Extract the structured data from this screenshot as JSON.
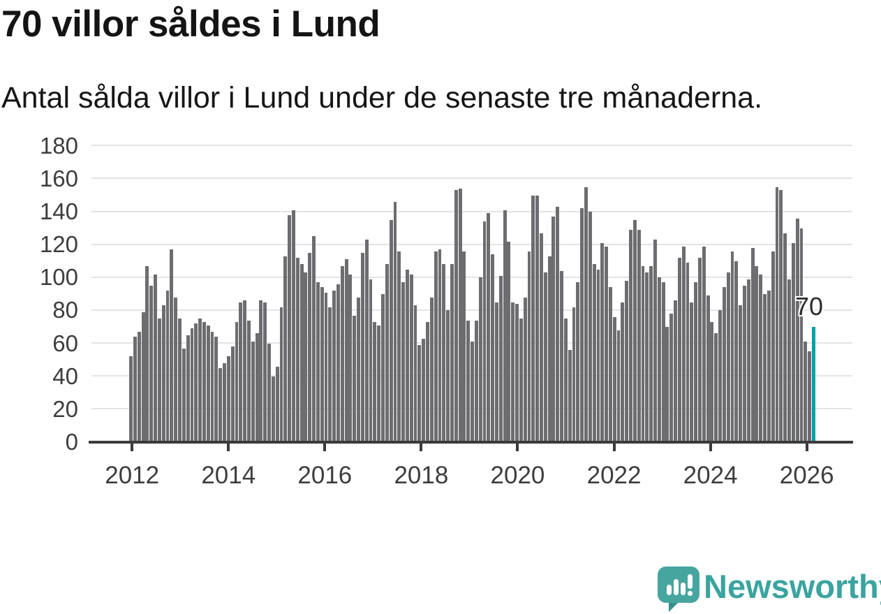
{
  "title": "70 villor såldes i Lund",
  "subtitle": "Antal sålda villor i Lund under de senaste tre månaderna.",
  "annotation": {
    "label": "70"
  },
  "branding": {
    "name": "Newsworthy"
  },
  "colors": {
    "bar": "#6d6c70",
    "highlight": "#00a1a3",
    "axis": "#3b3b3b",
    "grid": "#e4e4e4",
    "text": "#141414",
    "brand": "#3ba49f"
  },
  "chart_data": {
    "type": "bar",
    "title": "70 villor såldes i Lund",
    "subtitle": "Antal sålda villor i Lund under de senaste tre månaderna.",
    "start_month": "2012-01",
    "x_tick_labels": [
      "2012",
      "2014",
      "2016",
      "2018",
      "2020",
      "2022",
      "2024",
      "2026"
    ],
    "y_ticks": [
      0,
      20,
      40,
      60,
      80,
      100,
      120,
      140,
      160,
      180
    ],
    "ylim": [
      0,
      180
    ],
    "grid": true,
    "values_by_year": {
      "2012": [
        52,
        64,
        67,
        79,
        107,
        95,
        102,
        75,
        83,
        92,
        117,
        88
      ],
      "2013": [
        75,
        57,
        65,
        69,
        72,
        75,
        73,
        71,
        67,
        64,
        45,
        48
      ],
      "2014": [
        52,
        58,
        73,
        85,
        86,
        74,
        61,
        66,
        86,
        85,
        60,
        40
      ],
      "2015": [
        46,
        82,
        113,
        138,
        141,
        112,
        108,
        103,
        115,
        125,
        97,
        94
      ],
      "2016": [
        91,
        82,
        92,
        96,
        107,
        111,
        102,
        77,
        88,
        115,
        123,
        99
      ],
      "2017": [
        73,
        71,
        90,
        108,
        135,
        146,
        116,
        97,
        105,
        102,
        83,
        59
      ],
      "2018": [
        63,
        73,
        88,
        116,
        117,
        108,
        80,
        108,
        153,
        154,
        116,
        74
      ],
      "2019": [
        61,
        74,
        100,
        134,
        139,
        114,
        85,
        101,
        141,
        122,
        85,
        84
      ],
      "2020": [
        75,
        88,
        116,
        150,
        150,
        127,
        103,
        113,
        137,
        143,
        104,
        75
      ],
      "2021": [
        56,
        82,
        97,
        142,
        155,
        140,
        108,
        105,
        121,
        119,
        94,
        76
      ],
      "2022": [
        68,
        85,
        98,
        129,
        135,
        129,
        107,
        103,
        107,
        123,
        100,
        97
      ],
      "2023": [
        70,
        78,
        86,
        112,
        119,
        109,
        85,
        97,
        112,
        119,
        89,
        73
      ],
      "2024": [
        66,
        80,
        94,
        103,
        116,
        110,
        83,
        95,
        99,
        118,
        107,
        102
      ],
      "2025": [
        90,
        92,
        116,
        155,
        153,
        127,
        99,
        121,
        136,
        130,
        61,
        55
      ],
      "2026": [
        70
      ]
    },
    "highlight": {
      "position": "last",
      "value": 70,
      "label": "70"
    },
    "legend": null
  }
}
